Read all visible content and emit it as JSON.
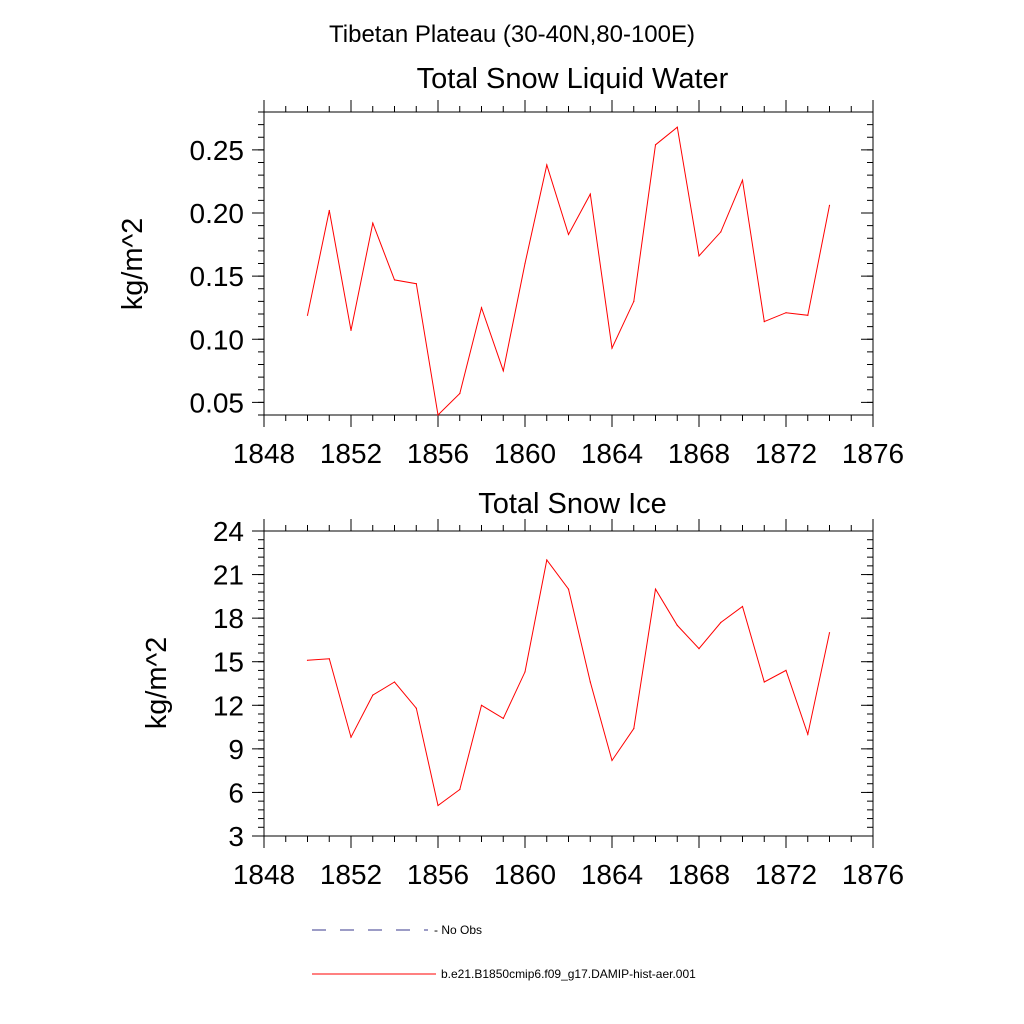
{
  "suptitle": "Tibetan Plateau (30-40N,80-100E)",
  "colors": {
    "model": "#ff0000",
    "obs": "#3a3a8c",
    "axis": "#000000"
  },
  "legend": {
    "obs_label": "- No Obs",
    "model_label": "b.e21.B1850cmip6.f09_g17.DAMIP-hist-aer.001"
  },
  "chart_data": [
    {
      "type": "line",
      "title": "Total Snow Liquid Water",
      "ylabel": "kg/m^2",
      "xlabel": "",
      "xlim": [
        1848,
        1876
      ],
      "ylim": [
        0.04,
        0.28
      ],
      "xticks": [
        1848,
        1852,
        1856,
        1860,
        1864,
        1868,
        1872,
        1876
      ],
      "xtick_labels": [
        "1848",
        "1852",
        "1856",
        "1860",
        "1864",
        "1868",
        "1872",
        "1876"
      ],
      "yticks": [
        0.05,
        0.1,
        0.15,
        0.2,
        0.25
      ],
      "ytick_labels": [
        "0.05",
        "0.10",
        "0.15",
        "0.20",
        "0.25"
      ],
      "x": [
        1850,
        1851,
        1852,
        1853,
        1854,
        1855,
        1856,
        1857,
        1858,
        1859,
        1860,
        1861,
        1862,
        1863,
        1864,
        1865,
        1866,
        1867,
        1868,
        1869,
        1870,
        1871,
        1872,
        1873,
        1874
      ],
      "series": [
        {
          "name": "b.e21.B1850cmip6.f09_g17.DAMIP-hist-aer.001",
          "values": [
            0.119,
            0.202,
            0.107,
            0.192,
            0.147,
            0.144,
            0.04,
            0.057,
            0.125,
            0.075,
            0.16,
            0.238,
            0.183,
            0.215,
            0.093,
            0.13,
            0.254,
            0.268,
            0.166,
            0.185,
            0.226,
            0.114,
            0.121,
            0.119,
            0.206
          ]
        }
      ],
      "grid": false
    },
    {
      "type": "line",
      "title": "Total Snow Ice",
      "ylabel": "kg/m^2",
      "xlabel": "",
      "xlim": [
        1848,
        1876
      ],
      "ylim": [
        3,
        24
      ],
      "xticks": [
        1848,
        1852,
        1856,
        1860,
        1864,
        1868,
        1872,
        1876
      ],
      "xtick_labels": [
        "1848",
        "1852",
        "1856",
        "1860",
        "1864",
        "1868",
        "1872",
        "1876"
      ],
      "yticks": [
        3,
        6,
        9,
        12,
        15,
        18,
        21,
        24
      ],
      "ytick_labels": [
        "3",
        "6",
        "9",
        "12",
        "15",
        "18",
        "21",
        "24"
      ],
      "x": [
        1850,
        1851,
        1852,
        1853,
        1854,
        1855,
        1856,
        1857,
        1858,
        1859,
        1860,
        1861,
        1862,
        1863,
        1864,
        1865,
        1866,
        1867,
        1868,
        1869,
        1870,
        1871,
        1872,
        1873,
        1874
      ],
      "series": [
        {
          "name": "b.e21.B1850cmip6.f09_g17.DAMIP-hist-aer.001",
          "values": [
            15.1,
            15.2,
            9.8,
            12.7,
            13.6,
            11.8,
            5.1,
            6.2,
            12.0,
            11.1,
            14.3,
            22.0,
            20.0,
            13.6,
            8.2,
            10.4,
            20.0,
            17.5,
            15.9,
            17.7,
            18.8,
            13.6,
            14.4,
            10.0,
            17.0
          ]
        }
      ],
      "grid": false
    }
  ]
}
